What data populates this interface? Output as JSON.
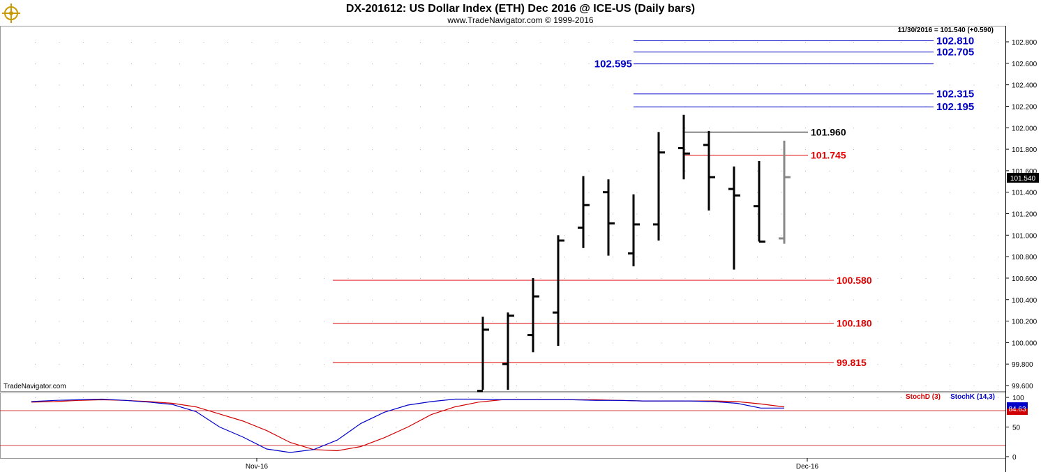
{
  "header": {
    "title": "DX-201612:  US Dollar Index (ETH) Dec 2016 @ ICE-US  (Daily bars)",
    "copyright": "www.TradeNavigator.com © 1999-2016",
    "last_value_readout": "11/30/2016 = 101.540 (+0.590)",
    "watermark": "TradeNavigator.com"
  },
  "colors": {
    "bars": "#000000",
    "last_bar": "#888888",
    "blue_levels": "#0000c8",
    "red_levels": "#e00000",
    "stoch_d": "#d00000",
    "stoch_k": "#0000c8",
    "grid_dots": "#b0b0b0"
  },
  "chart_data": [
    {
      "type": "bar",
      "subtype": "ohlc",
      "title": "DX-201612:  US Dollar Index (ETH) Dec 2016 @ ICE-US  (Daily bars)",
      "ylim": [
        99.55,
        102.87
      ],
      "y_ticks": [
        "102.800",
        "102.600",
        "102.400",
        "102.200",
        "102.000",
        "101.800",
        "101.600",
        "101.400",
        "101.200",
        "101.000",
        "100.800",
        "100.600",
        "100.400",
        "100.200",
        "100.000",
        "99.800",
        "99.600"
      ],
      "x_ticks": [
        "Nov-16",
        "Dec-16"
      ],
      "grid": true,
      "last_price_label": "101.540",
      "ohlc": [
        {
          "open": 99.55,
          "high": 100.24,
          "low": 99.55,
          "close": 100.12
        },
        {
          "open": 99.8,
          "high": 100.28,
          "low": 99.55,
          "close": 100.25
        },
        {
          "open": 100.07,
          "high": 100.6,
          "low": 99.91,
          "close": 100.43
        },
        {
          "open": 100.28,
          "high": 101.0,
          "low": 99.97,
          "close": 100.95
        },
        {
          "open": 101.07,
          "high": 101.55,
          "low": 100.88,
          "close": 101.28
        },
        {
          "open": 101.4,
          "high": 101.52,
          "low": 100.81,
          "close": 101.11
        },
        {
          "open": 100.83,
          "high": 101.38,
          "low": 100.71,
          "close": 101.1
        },
        {
          "open": 101.1,
          "high": 101.96,
          "low": 100.95,
          "close": 101.77
        },
        {
          "open": 101.81,
          "high": 102.12,
          "low": 101.52,
          "close": 101.76
        },
        {
          "open": 101.84,
          "high": 101.97,
          "low": 101.23,
          "close": 101.54
        },
        {
          "open": 101.43,
          "high": 101.64,
          "low": 100.68,
          "close": 101.37
        },
        {
          "open": 101.27,
          "high": 101.69,
          "low": 100.94,
          "close": 100.94
        },
        {
          "open": 100.97,
          "high": 101.88,
          "low": 100.92,
          "close": 101.54
        }
      ],
      "levels": [
        {
          "value": "102.810",
          "y": 102.81,
          "color": "blue",
          "label_side": "right"
        },
        {
          "value": "102.705",
          "y": 102.705,
          "color": "blue",
          "label_side": "right"
        },
        {
          "value": "102.595",
          "y": 102.595,
          "color": "blue",
          "label_side": "left"
        },
        {
          "value": "102.315",
          "y": 102.315,
          "color": "blue",
          "label_side": "right"
        },
        {
          "value": "102.195",
          "y": 102.195,
          "color": "blue",
          "label_side": "right"
        },
        {
          "value": "101.960",
          "y": 101.96,
          "color": "black",
          "label_side": "right"
        },
        {
          "value": "101.745",
          "y": 101.745,
          "color": "red",
          "label_side": "right"
        },
        {
          "value": "100.580",
          "y": 100.58,
          "color": "red",
          "label_side": "right"
        },
        {
          "value": "100.180",
          "y": 100.18,
          "color": "red",
          "label_side": "right"
        },
        {
          "value": "99.815",
          "y": 99.815,
          "color": "red",
          "label_side": "right"
        }
      ]
    },
    {
      "type": "line",
      "ylim": [
        0,
        100
      ],
      "y_ticks": [
        "100",
        "50",
        "0"
      ],
      "legend": [
        "StochD (3)",
        "StochK (14,3)"
      ],
      "last_value_label": "84.63",
      "series": [
        {
          "name": "StochD (3)",
          "values": [
            92,
            93,
            95,
            96,
            95,
            93,
            90,
            84,
            72,
            60,
            44,
            24,
            12,
            10,
            17,
            32,
            50,
            71,
            84,
            92,
            96,
            96,
            96,
            96,
            96,
            95,
            94,
            94,
            94,
            94,
            93,
            89,
            84
          ]
        },
        {
          "name": "StochK (14,3)",
          "values": [
            93,
            95,
            96,
            97,
            95,
            92,
            88,
            76,
            50,
            33,
            13,
            7,
            12,
            28,
            56,
            75,
            87,
            93,
            97,
            97,
            96,
            96,
            96,
            96,
            95,
            95,
            94,
            94,
            94,
            93,
            90,
            82,
            82
          ]
        }
      ]
    }
  ]
}
